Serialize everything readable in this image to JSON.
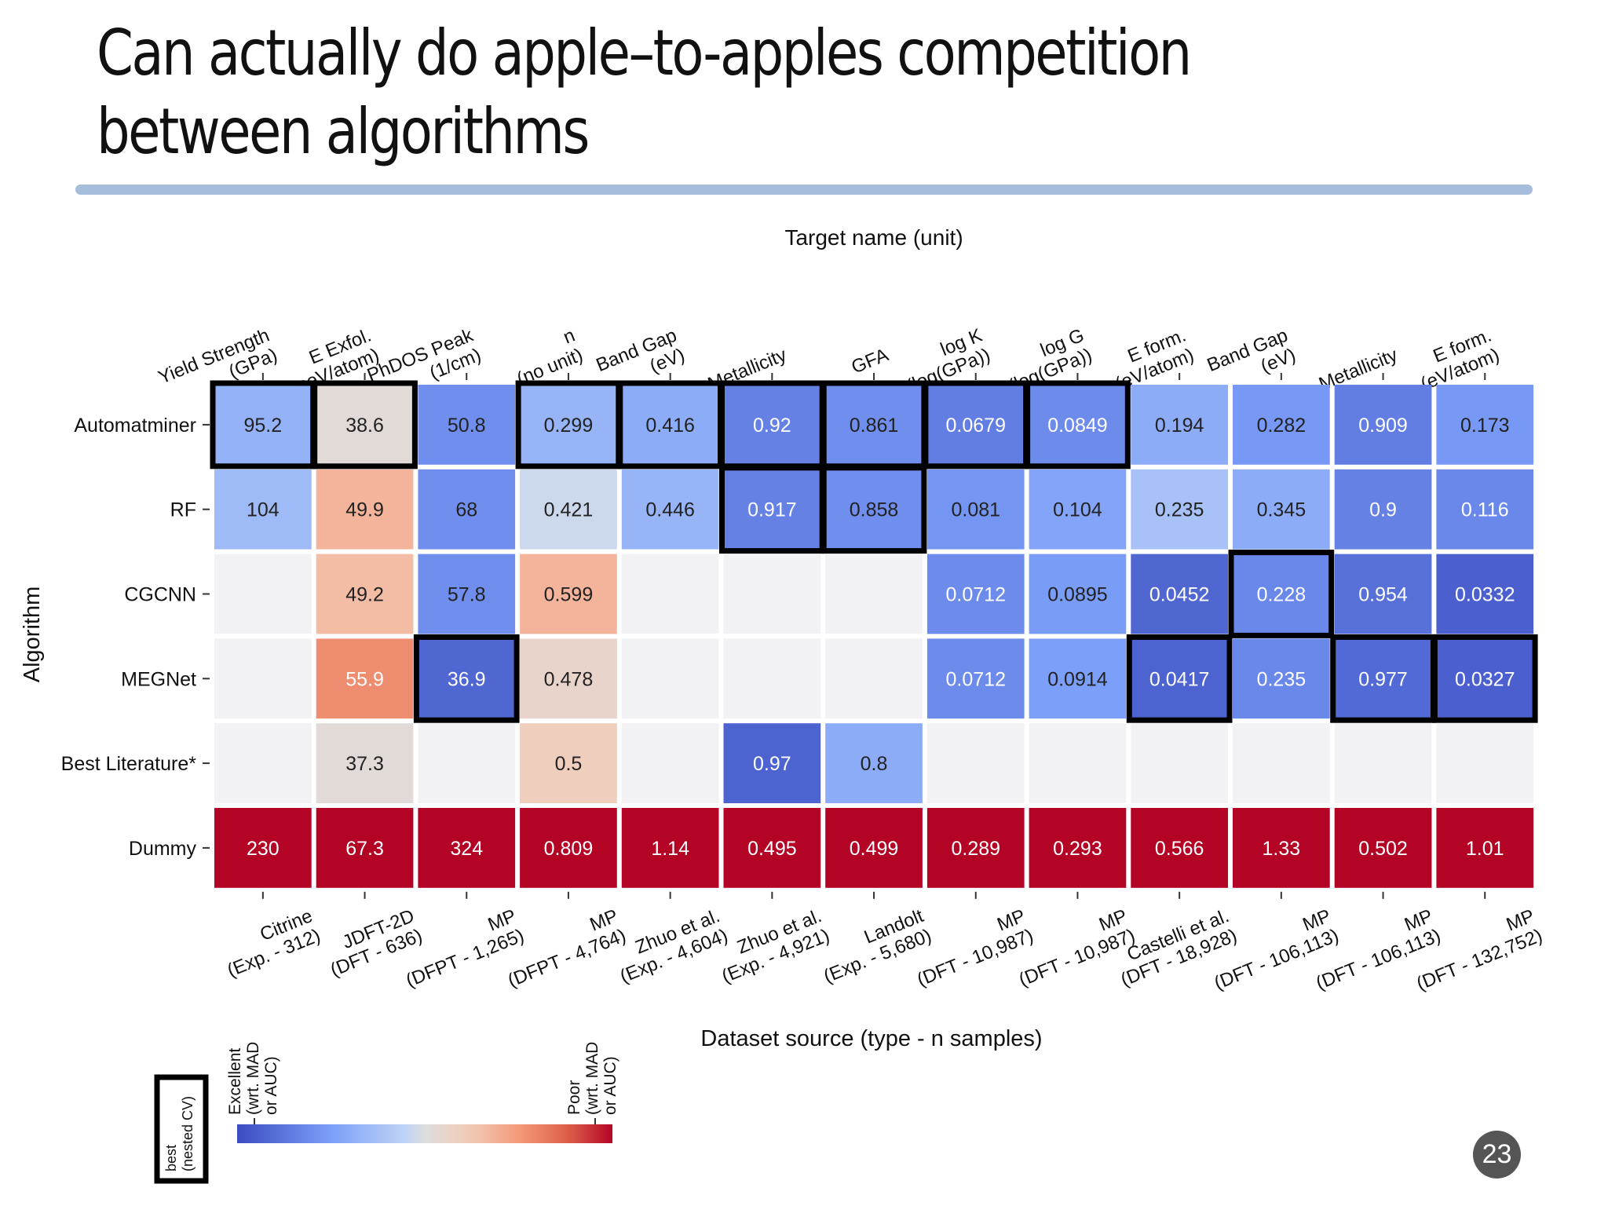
{
  "slide": {
    "title": "Can actually do apple–to-apples competition between algorithms",
    "page_number": "23"
  },
  "chart_data": {
    "type": "heatmap",
    "title": "Target name (unit)",
    "xlabel": "Dataset source (type - n samples)",
    "ylabel": "Algorithm",
    "targets": [
      "Yield Strength\n(GPa)",
      "E Exfol.\n(meV/atom)",
      "PhDOS Peak\n(1/cm)",
      "n\n(no unit)",
      "Band Gap\n(eV)",
      "Metallicity",
      "GFA",
      "log K\n(log(GPa))",
      "log G\n(log(GPa))",
      "E form.\n(eV/atom)",
      "Band Gap\n(eV)",
      "Metallicity",
      "E form.\n(eV/atom)"
    ],
    "datasets": [
      "Citrine\n(Exp. - 312)",
      "JDFT-2D\n(DFT - 636)",
      "MP\n(DFPT - 1,265)",
      "MP\n(DFPT - 4,764)",
      "Zhuo et al.\n(Exp. - 4,604)",
      "Zhuo et al.\n(Exp. - 4,921)",
      "Landolt\n(Exp. - 5,680)",
      "MP\n(DFT - 10,987)",
      "MP\n(DFT - 10,987)",
      "Castelli et al.\n(DFT - 18,928)",
      "MP\n(DFT - 106,113)",
      "MP\n(DFT - 106,113)",
      "MP\n(DFT - 132,752)"
    ],
    "algorithms": [
      "Automatminer",
      "RF",
      "CGCNN",
      "MEGNet",
      "Best Literature*",
      "Dummy"
    ],
    "values": [
      [
        "95.2",
        "38.6",
        "50.8",
        "0.299",
        "0.416",
        "0.92",
        "0.861",
        "0.0679",
        "0.0849",
        "0.194",
        "0.282",
        "0.909",
        "0.173"
      ],
      [
        "104",
        "49.9",
        "68",
        "0.421",
        "0.446",
        "0.917",
        "0.858",
        "0.081",
        "0.104",
        "0.235",
        "0.345",
        "0.9",
        "0.116"
      ],
      [
        "",
        "49.2",
        "57.8",
        "0.599",
        "",
        "",
        "",
        "0.0712",
        "0.0895",
        "0.0452",
        "0.228",
        "0.954",
        "0.0332"
      ],
      [
        "",
        "55.9",
        "36.9",
        "0.478",
        "",
        "",
        "",
        "0.0712",
        "0.0914",
        "0.0417",
        "0.235",
        "0.977",
        "0.0327"
      ],
      [
        "",
        "37.3",
        "",
        "0.5",
        "",
        "0.97",
        "0.8",
        "",
        "",
        "",
        "",
        "",
        ""
      ],
      [
        "230",
        "67.3",
        "324",
        "0.809",
        "1.14",
        "0.495",
        "0.499",
        "0.289",
        "0.293",
        "0.566",
        "1.33",
        "0.502",
        "1.01"
      ]
    ],
    "color_scores": [
      [
        0.32,
        0.52,
        0.2,
        0.33,
        0.3,
        0.16,
        0.2,
        0.15,
        0.19,
        0.3,
        0.23,
        0.15,
        0.23
      ],
      [
        0.35,
        0.68,
        0.2,
        0.47,
        0.33,
        0.16,
        0.2,
        0.22,
        0.27,
        0.38,
        0.3,
        0.16,
        0.18
      ],
      [
        null,
        0.66,
        0.2,
        0.68,
        null,
        null,
        null,
        0.19,
        0.24,
        0.08,
        0.18,
        0.11,
        0.06
      ],
      [
        null,
        0.78,
        0.08,
        0.56,
        null,
        null,
        null,
        0.19,
        0.25,
        0.07,
        0.18,
        0.09,
        0.06
      ],
      [
        null,
        0.52,
        null,
        0.6,
        null,
        0.07,
        0.3,
        null,
        null,
        null,
        null,
        null,
        null
      ],
      [
        1,
        1,
        1,
        1,
        1,
        1,
        1,
        1,
        1,
        1,
        1,
        1,
        1
      ]
    ],
    "best_boxes": [
      {
        "row": 0,
        "col": 0
      },
      {
        "row": 0,
        "col": 1
      },
      {
        "row": 0,
        "col": 3
      },
      {
        "row": 0,
        "col": 4
      },
      {
        "row": 0,
        "col": 5
      },
      {
        "row": 0,
        "col": 6
      },
      {
        "row": 0,
        "col": 7
      },
      {
        "row": 0,
        "col": 8
      },
      {
        "row": 1,
        "col": 5
      },
      {
        "row": 1,
        "col": 6
      },
      {
        "row": 2,
        "col": 10
      },
      {
        "row": 3,
        "col": 2
      },
      {
        "row": 3,
        "col": 9
      },
      {
        "row": 3,
        "col": 11
      },
      {
        "row": 3,
        "col": 12
      }
    ],
    "colorbar": {
      "type": "diverging (coolwarm)",
      "low_label": "Excellent\n(wrt. MAD\nor AUC)",
      "high_label": "Poor\n(wrt. MAD\nor AUC)"
    },
    "legend": {
      "best_label": "best\n(nested CV)",
      "position": "bottom-left"
    }
  },
  "colors": {
    "title_rule": "#a6bddc",
    "best_border": "#000000",
    "empty_cell": "#f2f2f4",
    "page_badge": "#555555"
  }
}
